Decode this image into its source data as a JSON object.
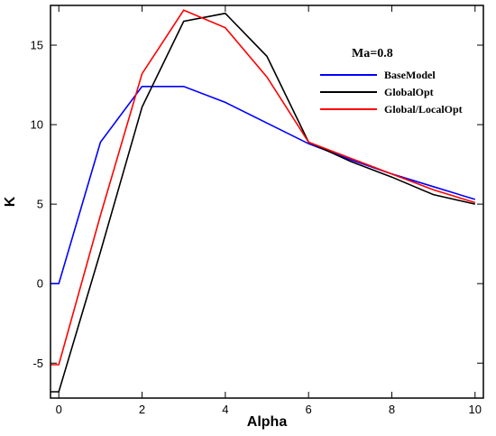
{
  "chart_data": {
    "type": "line",
    "xlabel": "Alpha",
    "ylabel": "K",
    "xlim": [
      -0.2,
      10.2
    ],
    "ylim": [
      -7.2,
      17.5
    ],
    "xticks": [
      0,
      2,
      4,
      6,
      8,
      10
    ],
    "yticks": [
      -5,
      0,
      5,
      10,
      15
    ],
    "legend_title": "Ma=0.8",
    "legend_position": "top-right",
    "grid": false,
    "x": [
      0,
      0,
      1,
      2,
      3,
      4,
      5,
      6,
      7,
      8,
      9,
      10
    ],
    "series": [
      {
        "name": "BaseModel",
        "color": "#0000ff",
        "points": [
          [
            -0.2,
            0
          ],
          [
            0,
            0
          ],
          [
            1,
            8.9
          ],
          [
            2,
            12.4
          ],
          [
            3,
            12.4
          ],
          [
            4,
            11.4
          ],
          [
            5,
            10.1
          ],
          [
            6,
            8.8
          ],
          [
            7,
            7.8
          ],
          [
            8,
            6.9
          ],
          [
            9,
            6.1
          ],
          [
            10,
            5.3
          ]
        ]
      },
      {
        "name": "GlobalOpt",
        "color": "#000000",
        "points": [
          [
            -0.2,
            -6.8
          ],
          [
            0,
            -6.8
          ],
          [
            1,
            2.0
          ],
          [
            2,
            11.1
          ],
          [
            3,
            16.5
          ],
          [
            4,
            17.0
          ],
          [
            5,
            14.3
          ],
          [
            6,
            8.9
          ],
          [
            7,
            7.7
          ],
          [
            8,
            6.7
          ],
          [
            9,
            5.6
          ],
          [
            10,
            5.0
          ]
        ]
      },
      {
        "name": "Global/LocalOpt",
        "color": "#ff0000",
        "points": [
          [
            -0.2,
            -5.1
          ],
          [
            0,
            -5.1
          ],
          [
            1,
            4.3
          ],
          [
            2,
            13.2
          ],
          [
            3,
            17.2
          ],
          [
            4,
            16.1
          ],
          [
            5,
            13.0
          ],
          [
            6,
            8.9
          ],
          [
            7,
            7.9
          ],
          [
            8,
            6.9
          ],
          [
            9,
            5.9
          ],
          [
            10,
            5.1
          ]
        ]
      }
    ]
  }
}
